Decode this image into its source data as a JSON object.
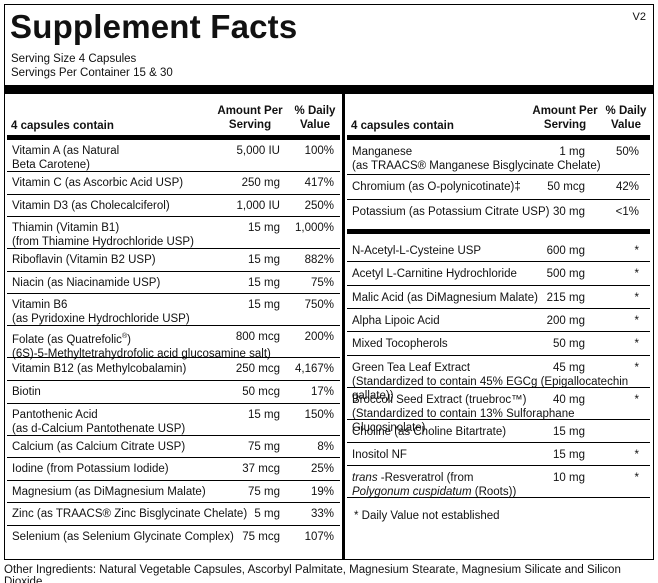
{
  "title": "Supplement Facts",
  "version": "V2",
  "serving_size": "Serving Size  4 Capsules",
  "servings_per_container": "Servings Per Container  15 & 30",
  "headers": {
    "name": "4 capsules contain",
    "amount_line1": "Amount Per",
    "amount_line2": "Serving",
    "dv_line1": "% Daily",
    "dv_line2": "Value"
  },
  "left_rows": [
    {
      "name": "Vitamin A (as Natural",
      "name2": "Beta Carotene)",
      "amount": "5,000 IU",
      "dv": "100%"
    },
    {
      "name": "Vitamin C (as Ascorbic Acid USP)",
      "amount": "250 mg",
      "dv": "417%"
    },
    {
      "name": "Vitamin D3 (as Cholecalciferol)",
      "amount": "1,000 IU",
      "dv": "250%"
    },
    {
      "name": "Thiamin (Vitamin B1)",
      "name2": "(from Thiamine Hydrochloride USP)",
      "amount": "15 mg",
      "dv": "1,000%"
    },
    {
      "name": "Riboflavin (Vitamin B2 USP)",
      "amount": "15 mg",
      "dv": "882%"
    },
    {
      "name": "Niacin (as Niacinamide USP)",
      "amount": "15 mg",
      "dv": "75%"
    },
    {
      "name": "Vitamin B6",
      "name2": "(as Pyridoxine Hydrochloride USP)",
      "amount": "15 mg",
      "dv": "750%"
    },
    {
      "name": "Folate (as Quatrefolic",
      "name_sup": "®",
      "name_end": ")",
      "name2": "(6S)-5-Methyltetrahydrofolic acid glucosamine salt)",
      "amount": "800 mcg",
      "dv": "200%"
    },
    {
      "name": "Vitamin B12 (as Methylcobalamin)",
      "amount": "250 mcg",
      "dv": "4,167%"
    },
    {
      "name": "Biotin",
      "amount": "50 mcg",
      "dv": "17%"
    },
    {
      "name": "Pantothenic Acid",
      "name2": "(as d-Calcium Pantothenate USP)",
      "amount": "15 mg",
      "dv": "150%"
    },
    {
      "name": "Calcium (as Calcium Citrate USP)",
      "amount": "75 mg",
      "dv": "8%"
    },
    {
      "name": "Iodine (from Potassium Iodide)",
      "amount": "37 mcg",
      "dv": "25%"
    },
    {
      "name": "Magnesium (as DiMagnesium Malate)",
      "amount": "75 mg",
      "dv": "19%"
    },
    {
      "name": "Zinc (as TRAACS® Zinc Bisglycinate Chelate)",
      "amount": "5 mg",
      "dv": "33%"
    },
    {
      "name": "Selenium (as Selenium Glycinate Complex)",
      "amount": "75 mcg",
      "dv": "107%"
    }
  ],
  "right_rows_a": [
    {
      "name": "Manganese",
      "name2": "(as TRAACS® Manganese Bisglycinate Chelate)",
      "amount": "1 mg",
      "dv": "50%"
    },
    {
      "name": "Chromium (as O-polynicotinate)‡",
      "amount": "50 mcg",
      "dv": "42%"
    },
    {
      "name": "Potassium (as Potassium Citrate USP)",
      "amount": "30 mg",
      "dv": "<1%"
    }
  ],
  "right_rows_b": [
    {
      "name": "N-Acetyl-L-Cysteine USP",
      "amount": "600 mg",
      "dv": "*"
    },
    {
      "name": "Acetyl L-Carnitine Hydrochloride",
      "amount": "500 mg",
      "dv": "*"
    },
    {
      "name": "Malic Acid (as DiMagnesium Malate)",
      "amount": "215 mg",
      "dv": "*"
    },
    {
      "name": "Alpha Lipoic Acid",
      "amount": "200 mg",
      "dv": "*"
    },
    {
      "name": "Mixed Tocopherols",
      "amount": "50 mg",
      "dv": "*"
    },
    {
      "name": "Green Tea Leaf Extract",
      "name2": "(Standardized to contain 45% EGCg (Epigallocatechin gallate))",
      "amount": "45 mg",
      "dv": "*"
    },
    {
      "name": "Broccoli Seed Extract (truebroc™)",
      "name2": "(Standardized to contain 13% Sulforaphane Glucosinolate)",
      "amount": "40 mg",
      "dv": "*"
    },
    {
      "name": "Choline (as Choline Bitartrate)",
      "amount": "15 mg",
      "dv": ""
    },
    {
      "name": "Inositol NF",
      "amount": "15 mg",
      "dv": "*"
    },
    {
      "name_italic": "trans",
      "name": " -Resveratrol (from",
      "name2_italic": "Polygonum cuspidatum",
      "name2": " (Roots))",
      "amount": "10 mg",
      "dv": "*"
    }
  ],
  "footnote": "*  Daily Value not established",
  "other_ingredients": "Other Ingredients: Natural Vegetable Capsules, Ascorbyl Palmitate, Magnesium Stearate, Magnesium Silicate and Silicon Dioxide."
}
